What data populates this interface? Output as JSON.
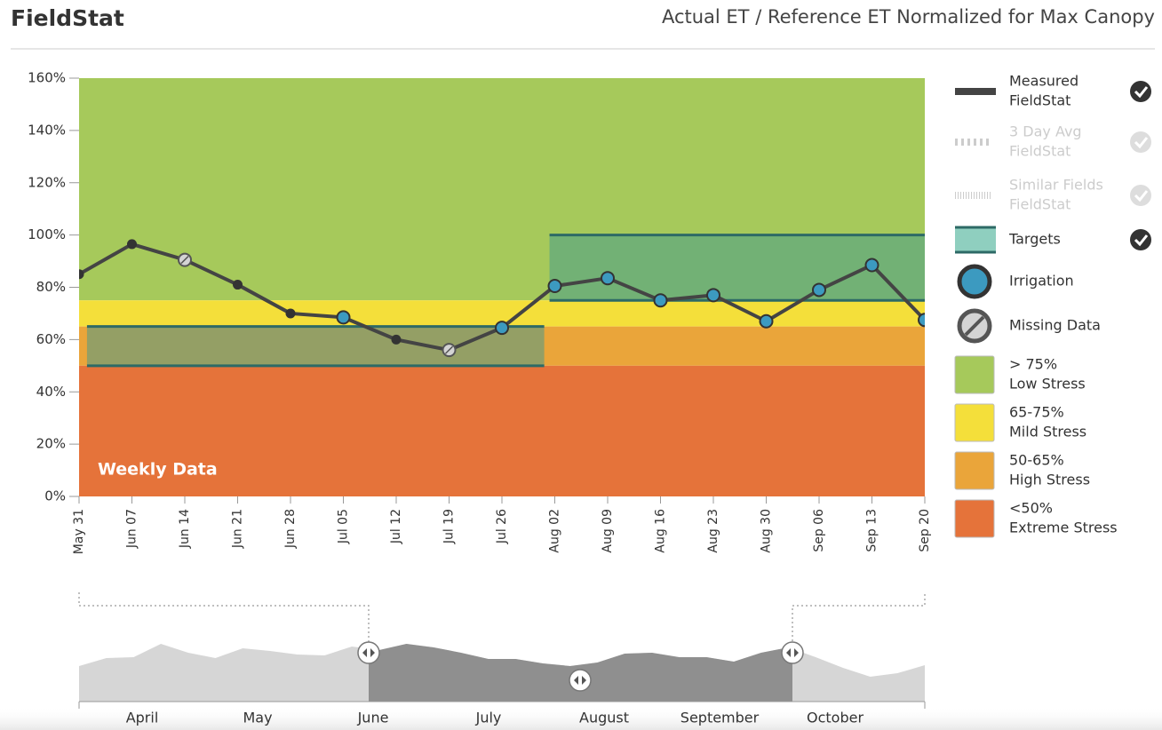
{
  "header": {
    "brand": "FieldStat"
  },
  "chart_data": {
    "type": "line",
    "title": "Actual ET / Reference ET Normalized for Max Canopy",
    "annotation": "Weekly Data",
    "categories": [
      "May 31",
      "Jun 07",
      "Jun 14",
      "Jun 21",
      "Jun 28",
      "Jul 05",
      "Jul 12",
      "Jul 19",
      "Jul 26",
      "Aug 02",
      "Aug 09",
      "Aug 16",
      "Aug 23",
      "Aug 30",
      "Sep 06",
      "Sep 13",
      "Sep 20"
    ],
    "series": [
      {
        "name": [
          "Measured",
          "FieldStat"
        ],
        "color": "#444444",
        "values": [
          85,
          96.5,
          90.5,
          81,
          70,
          68.5,
          60,
          56,
          64.5,
          80.5,
          83.5,
          75,
          77,
          67,
          79,
          88.5,
          67.5
        ],
        "markers": [
          "measured",
          "measured",
          "missing",
          "measured",
          "measured",
          "irrigation",
          "measured",
          "missing",
          "irrigation",
          "irrigation",
          "irrigation",
          "irrigation",
          "irrigation",
          "irrigation",
          "irrigation",
          "irrigation",
          "irrigation"
        ]
      }
    ],
    "ylim": [
      0,
      160
    ],
    "yticks": [
      {
        "value": 0,
        "label": "0%"
      },
      {
        "value": 20,
        "label": "20%"
      },
      {
        "value": 40,
        "label": "40%"
      },
      {
        "value": 60,
        "label": "60%"
      },
      {
        "value": 80,
        "label": "80%"
      },
      {
        "value": 100,
        "label": "100%"
      },
      {
        "value": 120,
        "label": "120%"
      },
      {
        "value": 140,
        "label": "140%"
      },
      {
        "value": 160,
        "label": "160%"
      }
    ],
    "bands": [
      {
        "from": 75,
        "to": 160,
        "color": "#a6c95b",
        "label": [
          "> 75%",
          "Low Stress"
        ]
      },
      {
        "from": 65,
        "to": 75,
        "color": "#f4df3a",
        "label": [
          "65-75%",
          "Mild Stress"
        ]
      },
      {
        "from": 50,
        "to": 65,
        "color": "#eaa53a",
        "label": [
          "50-65%",
          "High Stress"
        ]
      },
      {
        "from": 0,
        "to": 50,
        "color": "#e5733a",
        "label": [
          "<50%",
          "Extreme Stress"
        ]
      }
    ],
    "targets": [
      {
        "x": [
          0.15,
          8.8
        ],
        "y": [
          50,
          65
        ]
      },
      {
        "x": [
          8.9,
          16
        ],
        "y": [
          75,
          100
        ]
      }
    ],
    "target_color": "#3d9a8f",
    "legend": [
      {
        "label": [
          "Measured",
          "FieldStat"
        ],
        "icon": "line",
        "enabled": true
      },
      {
        "label": [
          "3 Day Avg",
          "FieldStat"
        ],
        "icon": "dotted",
        "enabled": false
      },
      {
        "label": [
          "Similar Fields",
          "FieldStat"
        ],
        "icon": "hatched",
        "enabled": false
      },
      {
        "label": [
          "Targets"
        ],
        "icon": "target",
        "enabled": true
      },
      {
        "label": [
          "Irrigation"
        ],
        "icon": "irrigation"
      },
      {
        "label": [
          "Missing Data"
        ],
        "icon": "missing"
      }
    ],
    "navigator": {
      "months": [
        "April",
        "May",
        "June",
        "July",
        "August",
        "September",
        "October"
      ],
      "values": [
        40,
        49,
        50,
        65,
        55,
        49,
        60,
        57,
        53,
        52,
        62,
        58,
        65,
        61,
        55,
        48,
        48,
        43,
        40,
        44,
        54,
        55,
        50,
        50,
        45,
        55,
        61,
        50,
        38,
        28,
        32,
        41
      ],
      "ylim": [
        0,
        130
      ]
    }
  }
}
